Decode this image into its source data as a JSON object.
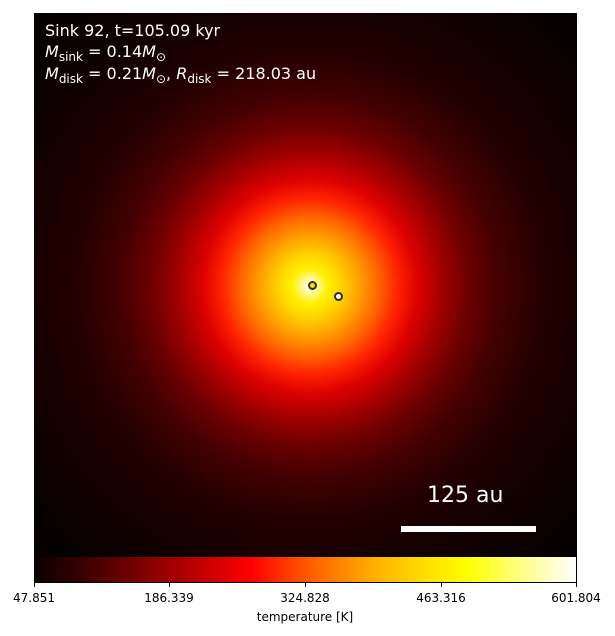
{
  "figure": {
    "title_line": "Sink 92, t=105.09 kyr",
    "sink_mass": {
      "symbol": "M",
      "subscript": "sink",
      "value_text": " = 0.14",
      "unit_symbol": "M",
      "unit_subscript": "⊙"
    },
    "disk_stats": {
      "mass_symbol": "M",
      "mass_subscript": "disk",
      "mass_value_text": " = 0.21",
      "mass_unit_symbol": "M",
      "mass_unit_subscript": "⊙",
      "separator": ", ",
      "radius_symbol": "R",
      "radius_subscript": "disk",
      "radius_value_text": " = 218.03 au"
    },
    "scale_bar": {
      "label": "125 au"
    },
    "colorbar": {
      "label": "temperature [K]",
      "ticks": [
        "47.851",
        "186.339",
        "324.828",
        "463.316",
        "601.804"
      ]
    },
    "sink_markers": [
      {
        "name": "secondary-sink",
        "fill": "#ffe000"
      },
      {
        "name": "primary-sink",
        "fill": "#ffffff"
      }
    ]
  }
}
